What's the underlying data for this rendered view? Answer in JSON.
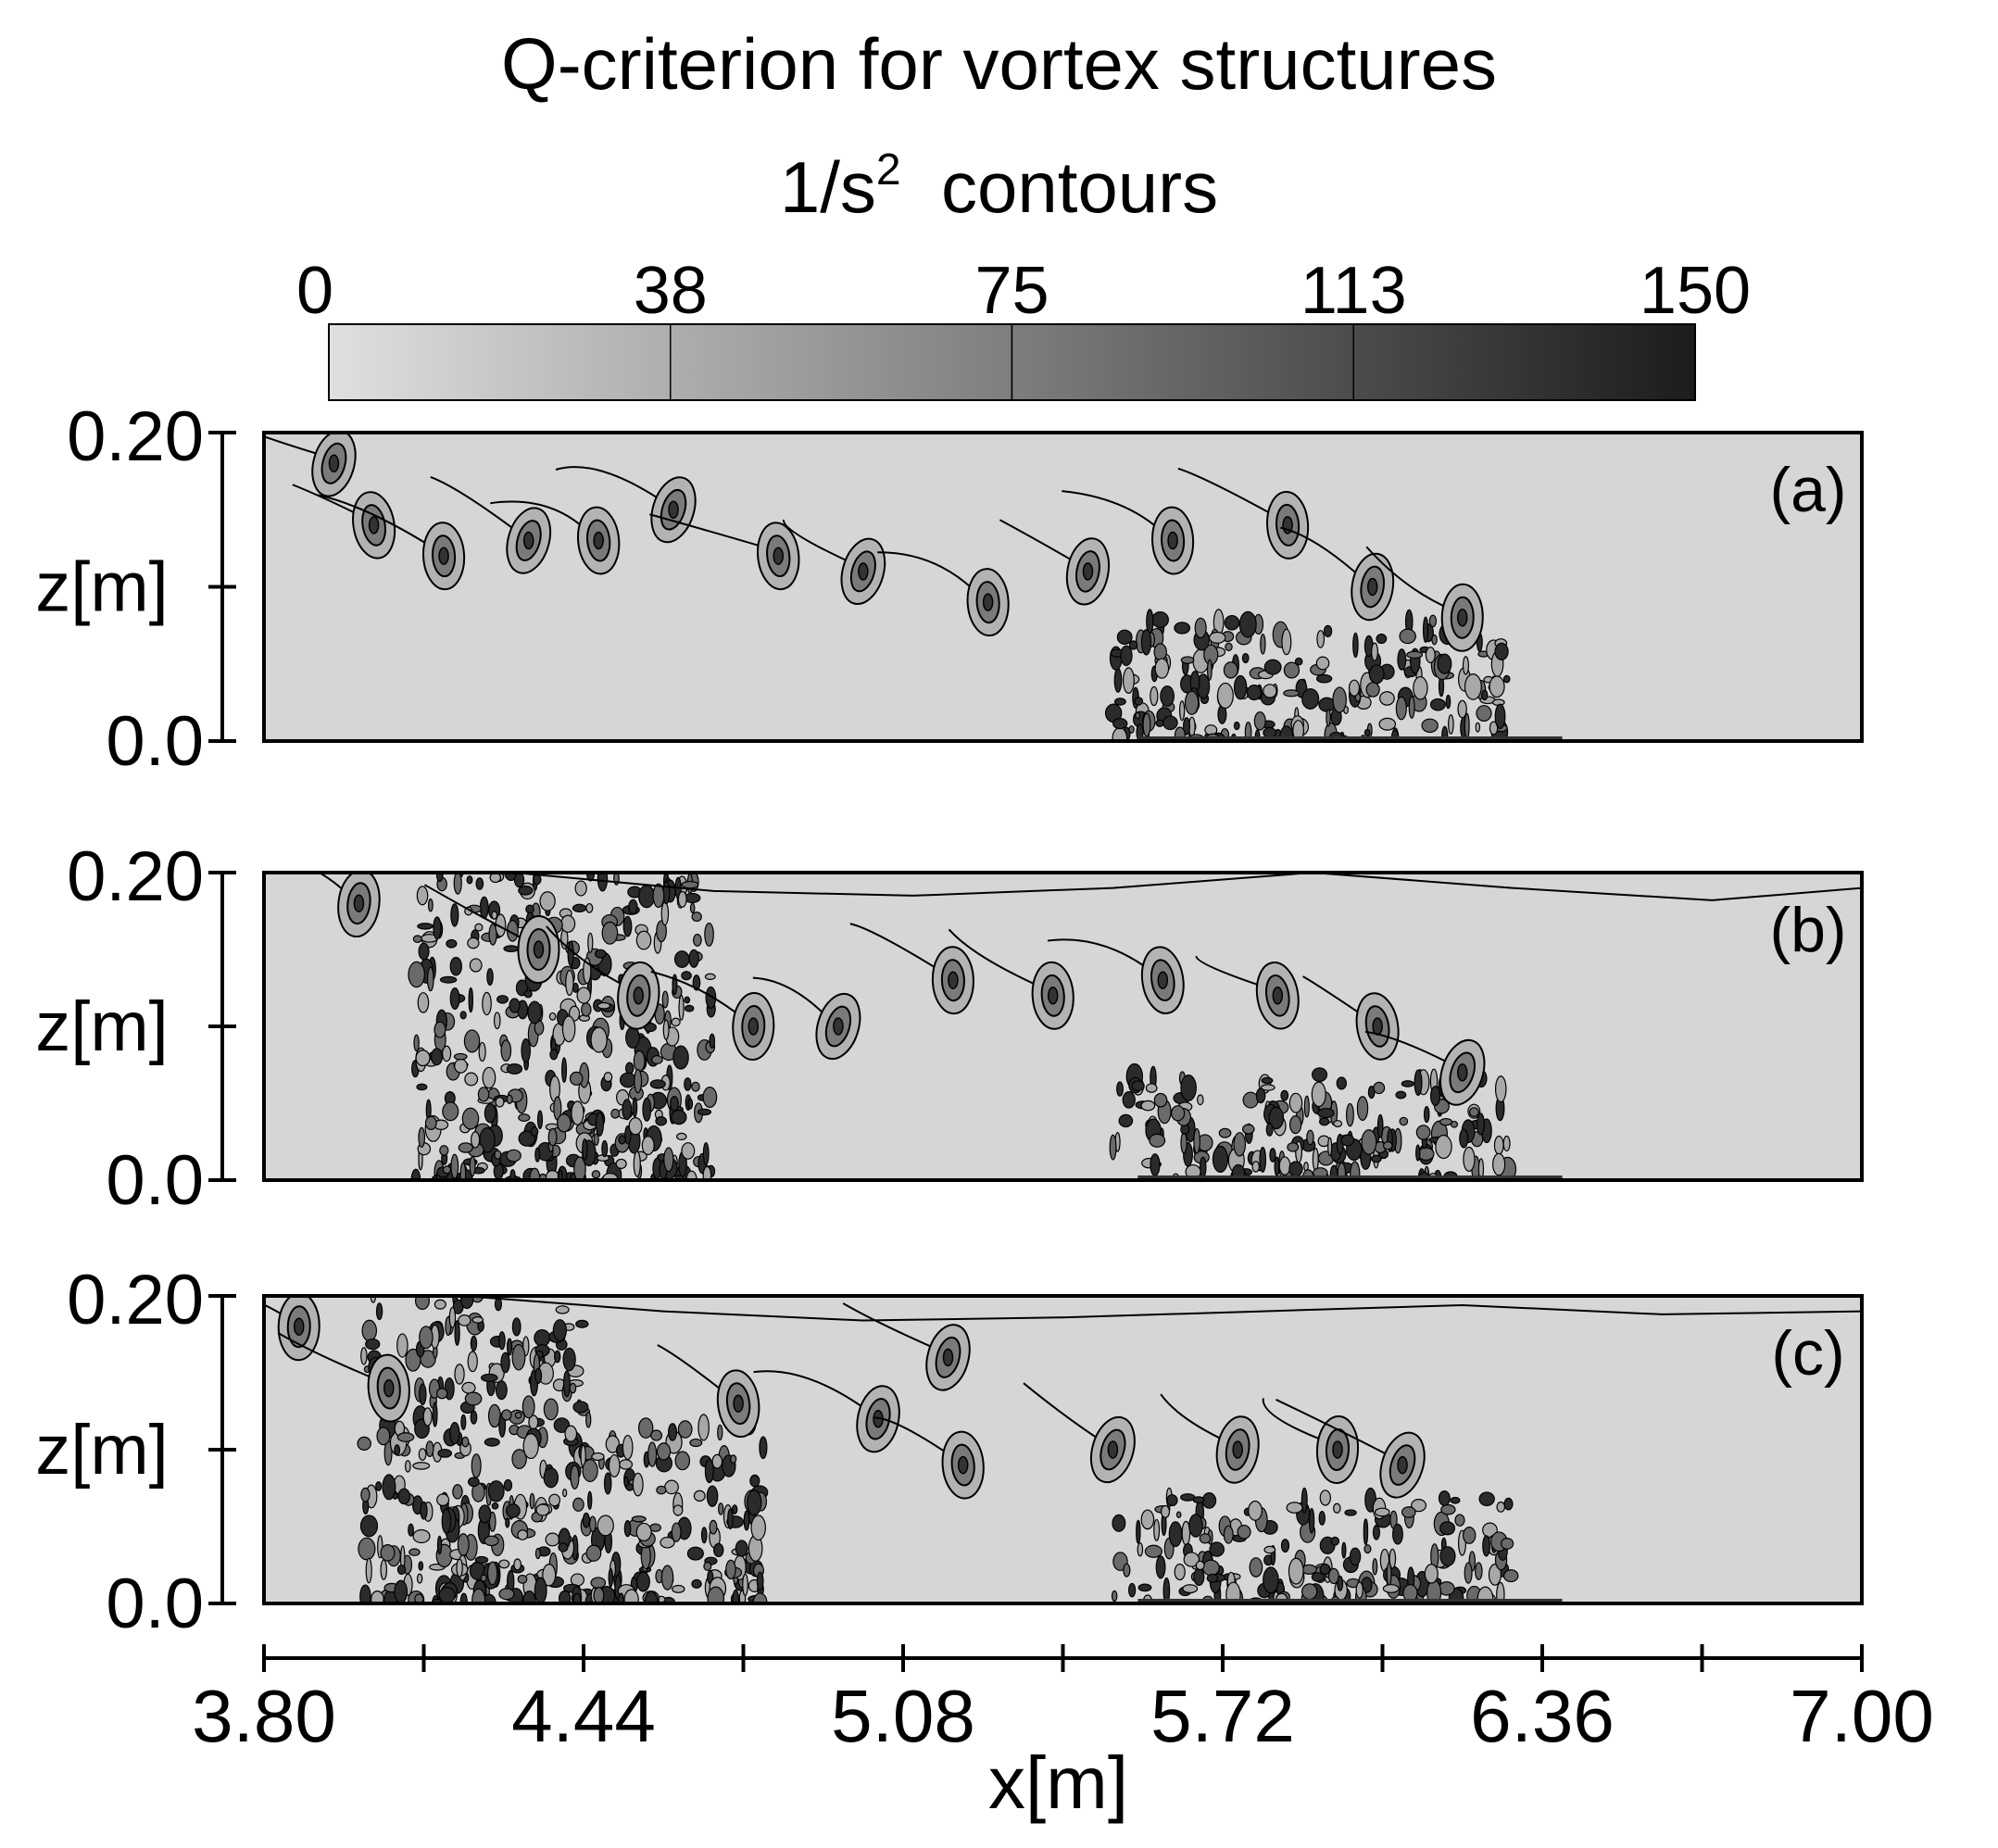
{
  "figure": {
    "title": "Q-criterion for vortex structures",
    "subtitle_unit_base": "1/s",
    "subtitle_unit_exp": "2",
    "subtitle_suffix": "contours"
  },
  "colorbar": {
    "ticks": [
      "0",
      "38",
      "75",
      "113",
      "150"
    ],
    "values": [
      0,
      38,
      75,
      113,
      150
    ],
    "colors": [
      "#dcdcdc",
      "#9b9b9b",
      "#5c5c5c",
      "#1f1f1f"
    ]
  },
  "chart_data": {
    "type": "heatmap",
    "title": "Q-criterion for vortex structures",
    "colorbar_label": "1/s2 contours",
    "colorbar_range": [
      0,
      150
    ],
    "xlabel": "x[m]",
    "ylabel": "z[m]",
    "xlim": [
      3.8,
      7.0
    ],
    "ylim": [
      0.0,
      0.2
    ],
    "xticklabels": [
      "3.80",
      "4.44",
      "5.08",
      "5.72",
      "6.36",
      "7.00"
    ],
    "xticks": [
      3.8,
      4.44,
      5.08,
      5.72,
      6.36,
      7.0
    ],
    "yticklabels": [
      "0.0",
      "0.20"
    ],
    "yticks": [
      0.0,
      0.2
    ],
    "panels": [
      {
        "label": "(a)",
        "vortices": [
          [
            3.94,
            0.18
          ],
          [
            4.02,
            0.14
          ],
          [
            4.16,
            0.12
          ],
          [
            4.33,
            0.13
          ],
          [
            4.47,
            0.13
          ],
          [
            4.62,
            0.15
          ],
          [
            4.83,
            0.12
          ],
          [
            5.0,
            0.11
          ],
          [
            5.25,
            0.09
          ],
          [
            5.45,
            0.11
          ],
          [
            5.62,
            0.13
          ],
          [
            5.85,
            0.14
          ],
          [
            6.02,
            0.1
          ],
          [
            6.2,
            0.08
          ]
        ],
        "turbulent_zones": [
          [
            5.5,
            6.3,
            0.0,
            0.08
          ]
        ],
        "surface": []
      },
      {
        "label": "(b)",
        "vortices": [
          [
            3.99,
            0.18
          ],
          [
            4.35,
            0.15
          ],
          [
            4.55,
            0.12
          ],
          [
            4.78,
            0.1
          ],
          [
            4.95,
            0.1
          ],
          [
            5.18,
            0.13
          ],
          [
            5.38,
            0.12
          ],
          [
            5.6,
            0.13
          ],
          [
            5.83,
            0.12
          ],
          [
            6.03,
            0.1
          ],
          [
            6.2,
            0.07
          ]
        ],
        "turbulent_zones": [
          [
            4.1,
            4.7,
            0.0,
            0.2
          ],
          [
            5.5,
            6.3,
            0.0,
            0.07
          ]
        ],
        "surface": [
          [
            3.8,
            0.2
          ],
          [
            4.3,
            0.2
          ],
          [
            4.7,
            0.188
          ],
          [
            5.1,
            0.185
          ],
          [
            5.5,
            0.19
          ],
          [
            5.9,
            0.2
          ],
          [
            6.3,
            0.19
          ],
          [
            6.7,
            0.182
          ],
          [
            7.0,
            0.19
          ]
        ]
      },
      {
        "label": "(c)",
        "vortices": [
          [
            3.87,
            0.18
          ],
          [
            4.05,
            0.14
          ],
          [
            4.75,
            0.13
          ],
          [
            5.03,
            0.12
          ],
          [
            5.17,
            0.16
          ],
          [
            5.2,
            0.09
          ],
          [
            5.5,
            0.1
          ],
          [
            5.75,
            0.1
          ],
          [
            5.95,
            0.1
          ],
          [
            6.08,
            0.09
          ]
        ],
        "turbulent_zones": [
          [
            4.0,
            4.45,
            0.0,
            0.2
          ],
          [
            4.45,
            4.8,
            0.0,
            0.12
          ],
          [
            5.5,
            6.3,
            0.0,
            0.07
          ]
        ],
        "surface": [
          [
            3.8,
            0.2
          ],
          [
            4.2,
            0.2
          ],
          [
            4.6,
            0.19
          ],
          [
            5.0,
            0.184
          ],
          [
            5.4,
            0.186
          ],
          [
            5.8,
            0.19
          ],
          [
            6.2,
            0.194
          ],
          [
            6.6,
            0.188
          ],
          [
            7.0,
            0.19
          ]
        ]
      }
    ]
  }
}
